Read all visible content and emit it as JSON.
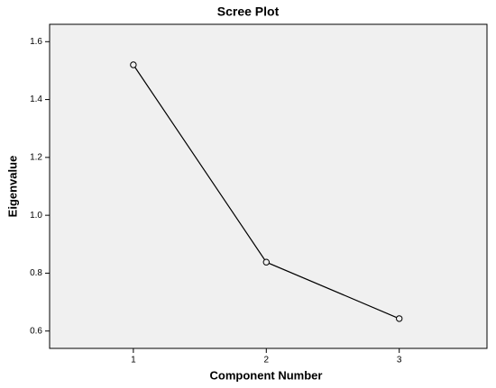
{
  "chart_data": {
    "type": "line",
    "title": "Scree Plot",
    "xlabel": "Component Number",
    "ylabel": "Eigenvalue",
    "x": [
      1,
      2,
      3
    ],
    "series": [
      {
        "name": "Eigenvalue",
        "color": "#000000",
        "values": [
          1.52,
          0.838,
          0.643
        ]
      }
    ],
    "xlim": [
      0.37,
      3.66
    ],
    "xticks": [
      1,
      2,
      3
    ],
    "ylim": [
      0.54,
      1.66
    ],
    "yticks": [
      0.6,
      0.8,
      {
        "value": 1,
        "label": "1.0"
      },
      1.2,
      1.4,
      1.6
    ],
    "plot_background": "#f0f0f0",
    "marker": "open-circle"
  }
}
